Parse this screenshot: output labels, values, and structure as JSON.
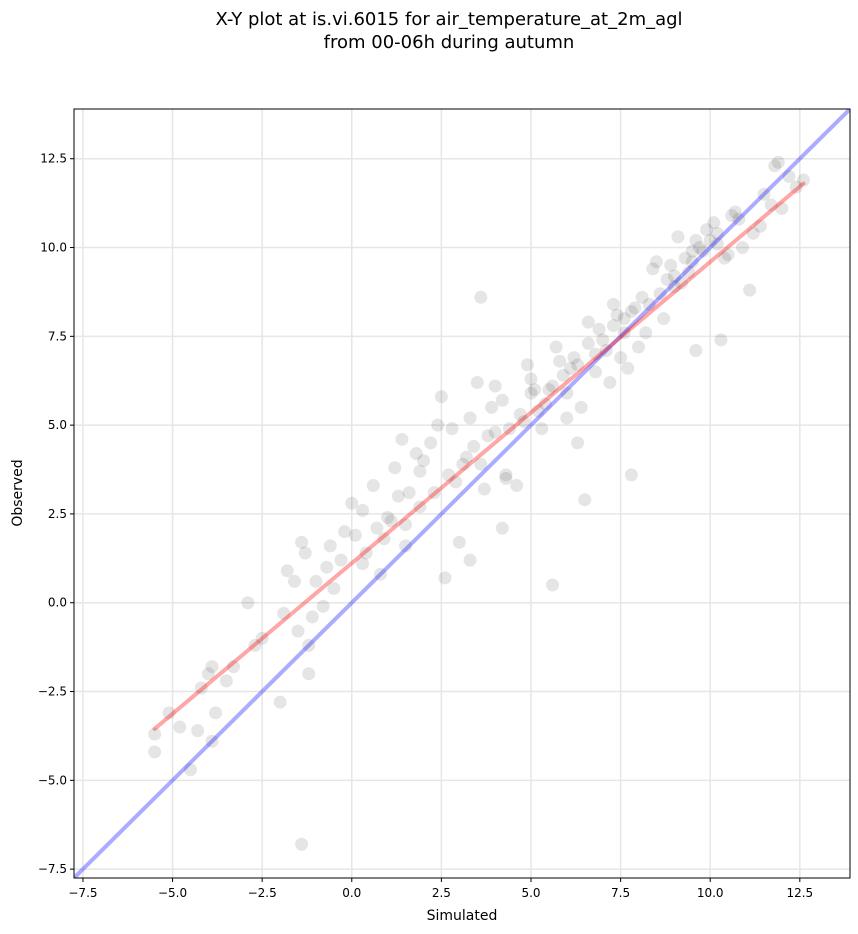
{
  "chart_data": {
    "type": "scatter",
    "title": [
      "X-Y plot at is.vi.6015 for air_temperature_at_2m_agl",
      "from 00-06h during autumn"
    ],
    "xlabel": "Simulated",
    "ylabel": "Observed",
    "xlim": [
      -7.75,
      13.9
    ],
    "ylim": [
      -7.75,
      13.9
    ],
    "xticks": [
      -7.5,
      -5.0,
      -2.5,
      0.0,
      2.5,
      5.0,
      7.5,
      10.0,
      12.5
    ],
    "yticks": [
      -7.5,
      -5.0,
      -2.5,
      0.0,
      2.5,
      5.0,
      7.5,
      10.0,
      12.5
    ],
    "xtick_labels": [
      "−7.5",
      "−5.0",
      "−2.5",
      "0.0",
      "2.5",
      "5.0",
      "7.5",
      "10.0",
      "12.5"
    ],
    "ytick_labels": [
      "−7.5",
      "−5.0",
      "−2.5",
      "0.0",
      "2.5",
      "5.0",
      "7.5",
      "10.0",
      "12.5"
    ],
    "grid": true,
    "colors": {
      "points": "#000000",
      "one_to_one_line": "#0000ff",
      "regression_line": "#ff0000"
    },
    "identity_line": {
      "x": [
        -7.75,
        13.9
      ],
      "y": [
        -7.75,
        13.9
      ]
    },
    "regression_line": {
      "x": [
        -5.5,
        12.6
      ],
      "y": [
        -3.55,
        11.8
      ]
    },
    "points": {
      "x": [
        -5.5,
        -5.5,
        -5.1,
        -4.8,
        -4.5,
        -4.3,
        -4.2,
        -4.0,
        -3.9,
        -3.9,
        -3.8,
        -3.5,
        -3.3,
        -2.9,
        -2.7,
        -2.5,
        -2.0,
        -1.9,
        -1.8,
        -1.6,
        -1.5,
        -1.4,
        -1.3,
        -1.2,
        -1.2,
        -1.1,
        -1.0,
        -0.7,
        -0.5,
        -0.3,
        -0.2,
        0.0,
        0.1,
        0.3,
        0.4,
        0.6,
        0.7,
        0.9,
        1.0,
        1.2,
        1.4,
        1.5,
        1.6,
        1.8,
        1.9,
        2.2,
        2.3,
        2.7,
        2.8,
        3.2,
        3.3,
        3.4,
        3.6,
        3.9,
        4.0,
        4.2,
        4.3,
        4.8,
        5.0,
        5.2,
        5.3,
        5.6,
        5.8,
        6.0,
        6.3,
        6.6,
        6.8,
        7.1,
        7.3,
        7.6,
        7.8,
        8.3,
        8.7,
        9.0,
        9.2,
        9.5,
        9.8,
        10.2,
        10.5,
        10.8,
        11.2,
        11.5,
        11.7,
        11.9,
        12.2,
        12.4,
        12.6,
        -1.4,
        3.6,
        5.6,
        2.6,
        1.5,
        0.8,
        -0.8,
        4.2,
        3.0,
        6.5,
        7.8,
        9.6,
        10.3,
        11.1,
        5.0,
        6.2,
        7.4,
        8.9,
        9.1,
        8.6,
        7.9,
        6.8,
        6.1,
        5.5,
        4.7,
        3.8,
        2.9,
        1.9,
        1.1,
        0.3,
        -0.6,
        3.5,
        4.4,
        5.9,
        7.0,
        8.1,
        9.3,
        10.0,
        10.6,
        11.4,
        12.0,
        2.4,
        4.9,
        6.6,
        8.4,
        9.7,
        3.1,
        4.0,
        5.4,
        6.9,
        7.6,
        8.8,
        9.9,
        10.9,
        11.8,
        1.3,
        2.0,
        3.7,
        5.1,
        6.4,
        7.2,
        8.0,
        9.4,
        10.4,
        2.5,
        4.6,
        6.3,
        7.7,
        9.0,
        10.1,
        3.3,
        5.7,
        7.3,
        8.5,
        9.6,
        10.7,
        4.3,
        6.0,
        7.5,
        8.2,
        9.5,
        10.2
      ],
      "y": [
        -3.7,
        -4.2,
        -3.1,
        -3.5,
        -4.7,
        -3.6,
        -2.4,
        -2.0,
        -3.9,
        -1.8,
        -3.1,
        -2.2,
        -1.8,
        0.0,
        -1.2,
        -1.0,
        -2.8,
        -0.3,
        0.9,
        0.6,
        -0.8,
        1.7,
        1.4,
        -1.2,
        -2.0,
        -0.4,
        0.6,
        1.0,
        0.4,
        1.2,
        2.0,
        2.8,
        1.9,
        2.6,
        1.4,
        3.3,
        2.1,
        1.8,
        2.4,
        3.8,
        4.6,
        2.2,
        3.1,
        4.2,
        3.7,
        4.5,
        3.1,
        3.6,
        4.9,
        4.1,
        5.2,
        4.4,
        3.9,
        5.5,
        4.8,
        5.7,
        3.6,
        5.1,
        6.3,
        5.4,
        4.9,
        6.1,
        6.8,
        5.9,
        6.7,
        7.3,
        6.5,
        7.1,
        7.8,
        7.6,
        8.2,
        8.4,
        8.0,
        9.2,
        9.0,
        9.6,
        9.9,
        10.1,
        9.8,
        10.8,
        10.4,
        11.5,
        11.2,
        12.4,
        12.0,
        11.7,
        11.9,
        -6.8,
        8.6,
        0.5,
        0.7,
        1.6,
        0.8,
        -0.1,
        2.1,
        1.7,
        2.9,
        3.6,
        7.1,
        7.4,
        8.8,
        5.9,
        6.9,
        8.1,
        9.5,
        10.3,
        8.7,
        8.3,
        7.0,
        6.6,
        6.0,
        5.3,
        4.7,
        3.4,
        2.7,
        2.3,
        1.1,
        1.6,
        6.2,
        4.9,
        6.4,
        7.4,
        8.6,
        9.7,
        10.2,
        10.9,
        10.6,
        11.1,
        5.0,
        6.7,
        7.9,
        9.4,
        10.0,
        3.9,
        6.1,
        5.6,
        7.7,
        8.0,
        9.1,
        10.5,
        10.0,
        12.3,
        3.0,
        4.0,
        3.2,
        6.0,
        5.5,
        6.2,
        7.2,
        9.3,
        9.7,
        5.8,
        3.3,
        4.5,
        6.6,
        8.9,
        10.7,
        1.2,
        7.2,
        8.4,
        9.6,
        10.2,
        11.0,
        3.5,
        5.2,
        6.9,
        7.6,
        9.9,
        10.4
      ]
    }
  }
}
